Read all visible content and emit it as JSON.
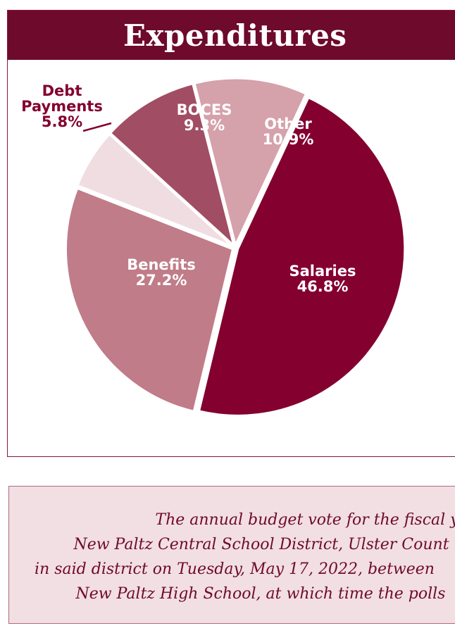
{
  "chart_data": {
    "type": "pie",
    "title": "Expenditures",
    "slices": [
      {
        "label": "Salaries",
        "value": 46.8,
        "display": "46.8%",
        "color": "#83002f",
        "label_color": "#ffffff"
      },
      {
        "label": "Benefits",
        "value": 27.2,
        "display": "27.2%",
        "color": "#c07c88",
        "label_color": "#ffffff"
      },
      {
        "label": "Debt Payments",
        "value": 5.8,
        "display": "5.8%",
        "color": "#f0dde1",
        "label_color": "#83002f"
      },
      {
        "label": "BOCES",
        "value": 9.3,
        "display": "9.3%",
        "color": "#a14d63",
        "label_color": "#ffffff"
      },
      {
        "label": "Other",
        "value": 10.9,
        "display": "10.9%",
        "color": "#d5a1aa",
        "label_color": "#ffffff"
      }
    ]
  },
  "notice": {
    "lines": [
      "The annual budget vote for the fiscal y",
      "New Paltz Central School District, Ulster Count",
      "in said district on Tuesday, May 17, 2022, between",
      "New Paltz High School, at which time the polls"
    ]
  }
}
